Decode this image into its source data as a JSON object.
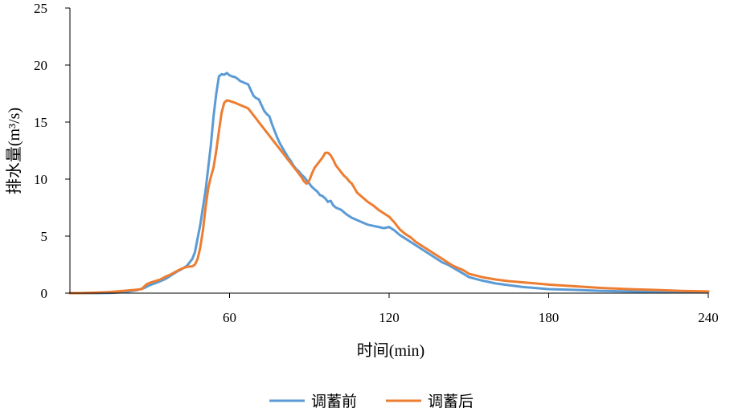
{
  "chart_data": {
    "type": "line",
    "title": "",
    "xlabel": "时间(min)",
    "ylabel": "排水量(m³/s)",
    "xlim": [
      0,
      240
    ],
    "ylim": [
      0,
      25
    ],
    "xticks": [
      60,
      120,
      180,
      240
    ],
    "yticks": [
      0,
      5,
      10,
      15,
      20,
      25
    ],
    "grid": false,
    "legend": "bottom",
    "series": [
      {
        "name": "调蓄前",
        "color": "#5B9BD5",
        "points": [
          [
            0,
            0
          ],
          [
            10,
            0
          ],
          [
            15,
            0.02
          ],
          [
            20,
            0.08
          ],
          [
            25,
            0.25
          ],
          [
            28,
            0.45
          ],
          [
            30,
            0.7
          ],
          [
            33,
            0.95
          ],
          [
            36,
            1.25
          ],
          [
            38,
            1.55
          ],
          [
            40,
            1.85
          ],
          [
            42,
            2.1
          ],
          [
            44,
            2.4
          ],
          [
            46,
            3.0
          ],
          [
            47,
            3.6
          ],
          [
            48,
            4.8
          ],
          [
            49,
            6.0
          ],
          [
            50,
            7.5
          ],
          [
            51,
            9.0
          ],
          [
            52,
            11.0
          ],
          [
            53,
            13.0
          ],
          [
            54,
            15.5
          ],
          [
            55,
            17.5
          ],
          [
            56,
            19.0
          ],
          [
            57,
            19.2
          ],
          [
            58,
            19.15
          ],
          [
            59,
            19.3
          ],
          [
            60,
            19.1
          ],
          [
            61,
            19.0
          ],
          [
            62,
            18.95
          ],
          [
            63,
            18.8
          ],
          [
            64,
            18.6
          ],
          [
            65,
            18.5
          ],
          [
            66,
            18.4
          ],
          [
            67,
            18.3
          ],
          [
            68,
            17.8
          ],
          [
            69,
            17.3
          ],
          [
            70,
            17.1
          ],
          [
            71,
            17.0
          ],
          [
            72,
            16.5
          ],
          [
            73,
            16.0
          ],
          [
            74,
            15.7
          ],
          [
            75,
            15.5
          ],
          [
            76,
            14.8
          ],
          [
            77,
            14.2
          ],
          [
            78,
            13.6
          ],
          [
            79,
            13.1
          ],
          [
            80,
            12.7
          ],
          [
            81,
            12.3
          ],
          [
            82,
            11.9
          ],
          [
            83,
            11.6
          ],
          [
            84,
            11.2
          ],
          [
            85,
            10.9
          ],
          [
            86,
            10.7
          ],
          [
            87,
            10.4
          ],
          [
            88,
            10.2
          ],
          [
            89,
            9.9
          ],
          [
            90,
            9.6
          ],
          [
            91,
            9.3
          ],
          [
            92,
            9.1
          ],
          [
            93,
            8.9
          ],
          [
            94,
            8.6
          ],
          [
            95,
            8.5
          ],
          [
            96,
            8.3
          ],
          [
            97,
            8.0
          ],
          [
            98,
            8.1
          ],
          [
            99,
            7.7
          ],
          [
            100,
            7.5
          ],
          [
            102,
            7.3
          ],
          [
            104,
            6.9
          ],
          [
            106,
            6.6
          ],
          [
            108,
            6.4
          ],
          [
            110,
            6.2
          ],
          [
            112,
            6.0
          ],
          [
            114,
            5.9
          ],
          [
            116,
            5.8
          ],
          [
            118,
            5.7
          ],
          [
            120,
            5.8
          ],
          [
            122,
            5.5
          ],
          [
            124,
            5.1
          ],
          [
            126,
            4.8
          ],
          [
            128,
            4.5
          ],
          [
            130,
            4.2
          ],
          [
            132,
            3.9
          ],
          [
            134,
            3.6
          ],
          [
            136,
            3.3
          ],
          [
            138,
            3.0
          ],
          [
            140,
            2.7
          ],
          [
            142,
            2.5
          ],
          [
            145,
            2.1
          ],
          [
            148,
            1.7
          ],
          [
            150,
            1.4
          ],
          [
            155,
            1.1
          ],
          [
            160,
            0.85
          ],
          [
            165,
            0.7
          ],
          [
            170,
            0.55
          ],
          [
            175,
            0.45
          ],
          [
            180,
            0.35
          ],
          [
            190,
            0.28
          ],
          [
            200,
            0.2
          ],
          [
            210,
            0.15
          ],
          [
            220,
            0.12
          ],
          [
            230,
            0.1
          ],
          [
            240,
            0.08
          ]
        ]
      },
      {
        "name": "调蓄后",
        "color": "#ED7D31",
        "points": [
          [
            0,
            0
          ],
          [
            5,
            0.01
          ],
          [
            10,
            0.04
          ],
          [
            15,
            0.1
          ],
          [
            20,
            0.2
          ],
          [
            25,
            0.3
          ],
          [
            27,
            0.35
          ],
          [
            28,
            0.6
          ],
          [
            29,
            0.8
          ],
          [
            30,
            0.9
          ],
          [
            32,
            1.05
          ],
          [
            34,
            1.2
          ],
          [
            36,
            1.45
          ],
          [
            38,
            1.65
          ],
          [
            40,
            1.9
          ],
          [
            42,
            2.15
          ],
          [
            44,
            2.3
          ],
          [
            46,
            2.35
          ],
          [
            47,
            2.5
          ],
          [
            48,
            3.0
          ],
          [
            49,
            4.0
          ],
          [
            50,
            5.5
          ],
          [
            51,
            7.5
          ],
          [
            52,
            9.2
          ],
          [
            53,
            10.2
          ],
          [
            54,
            11.0
          ],
          [
            55,
            12.5
          ],
          [
            56,
            14.2
          ],
          [
            57,
            15.8
          ],
          [
            58,
            16.7
          ],
          [
            59,
            16.9
          ],
          [
            60,
            16.85
          ],
          [
            62,
            16.7
          ],
          [
            64,
            16.5
          ],
          [
            65,
            16.4
          ],
          [
            66,
            16.3
          ],
          [
            67,
            16.2
          ],
          [
            68,
            15.9
          ],
          [
            69,
            15.6
          ],
          [
            70,
            15.3
          ],
          [
            71,
            15.0
          ],
          [
            72,
            14.7
          ],
          [
            73,
            14.4
          ],
          [
            74,
            14.1
          ],
          [
            75,
            13.8
          ],
          [
            76,
            13.5
          ],
          [
            77,
            13.2
          ],
          [
            78,
            12.9
          ],
          [
            79,
            12.6
          ],
          [
            80,
            12.3
          ],
          [
            81,
            12.0
          ],
          [
            82,
            11.7
          ],
          [
            83,
            11.4
          ],
          [
            84,
            11.1
          ],
          [
            85,
            10.8
          ],
          [
            86,
            10.5
          ],
          [
            87,
            10.2
          ],
          [
            88,
            9.8
          ],
          [
            89,
            9.6
          ],
          [
            90,
            9.9
          ],
          [
            91,
            10.5
          ],
          [
            92,
            11.0
          ],
          [
            93,
            11.3
          ],
          [
            94,
            11.6
          ],
          [
            95,
            11.9
          ],
          [
            96,
            12.3
          ],
          [
            97,
            12.3
          ],
          [
            98,
            12.1
          ],
          [
            99,
            11.7
          ],
          [
            100,
            11.2
          ],
          [
            101,
            10.9
          ],
          [
            102,
            10.6
          ],
          [
            103,
            10.3
          ],
          [
            104,
            10.1
          ],
          [
            105,
            9.8
          ],
          [
            106,
            9.6
          ],
          [
            107,
            9.2
          ],
          [
            108,
            8.8
          ],
          [
            109,
            8.6
          ],
          [
            110,
            8.4
          ],
          [
            112,
            8.0
          ],
          [
            114,
            7.7
          ],
          [
            116,
            7.3
          ],
          [
            118,
            7.0
          ],
          [
            120,
            6.7
          ],
          [
            122,
            6.2
          ],
          [
            124,
            5.6
          ],
          [
            126,
            5.2
          ],
          [
            128,
            4.9
          ],
          [
            130,
            4.5
          ],
          [
            132,
            4.2
          ],
          [
            134,
            3.9
          ],
          [
            136,
            3.6
          ],
          [
            138,
            3.3
          ],
          [
            140,
            3.0
          ],
          [
            142,
            2.7
          ],
          [
            144,
            2.4
          ],
          [
            146,
            2.2
          ],
          [
            148,
            2.0
          ],
          [
            150,
            1.7
          ],
          [
            155,
            1.4
          ],
          [
            160,
            1.2
          ],
          [
            165,
            1.05
          ],
          [
            170,
            0.95
          ],
          [
            175,
            0.85
          ],
          [
            180,
            0.75
          ],
          [
            190,
            0.6
          ],
          [
            200,
            0.45
          ],
          [
            210,
            0.35
          ],
          [
            220,
            0.28
          ],
          [
            230,
            0.2
          ],
          [
            240,
            0.15
          ]
        ]
      }
    ]
  }
}
